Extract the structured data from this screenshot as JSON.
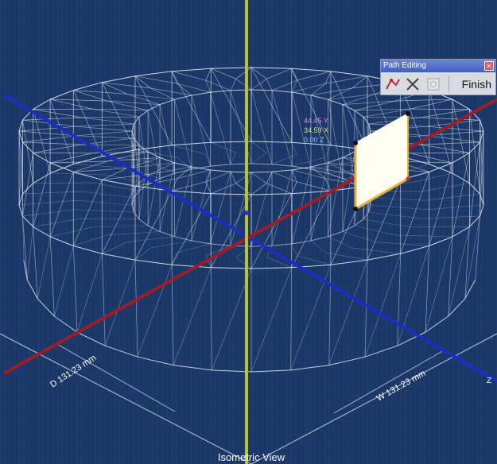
{
  "viewport": {
    "view_label": "Isometric View",
    "dimension_depth": "D 131.23 mm",
    "dimension_width": "W 131.23 mm",
    "coord_readouts": [
      "44.45 Y",
      "34.59 X",
      "0.00 Z"
    ],
    "axis_marker": "Z",
    "colors": {
      "background": "#1d3a6b",
      "grid": "#2c4a80",
      "wireframe": "#e6e8ee",
      "axis_x_red": "#9b1f2a",
      "axis_y_blue": "#1c2fc0",
      "axis_z_yellow": "#b9c23b",
      "selected_face": "#fffdf0",
      "selected_edge": "#e8b23a"
    }
  },
  "path_editing": {
    "title": "Path Editing",
    "icons": [
      "path-add-icon",
      "delete-x-icon",
      "disabled-box-icon"
    ],
    "finish_label": "Finish"
  }
}
